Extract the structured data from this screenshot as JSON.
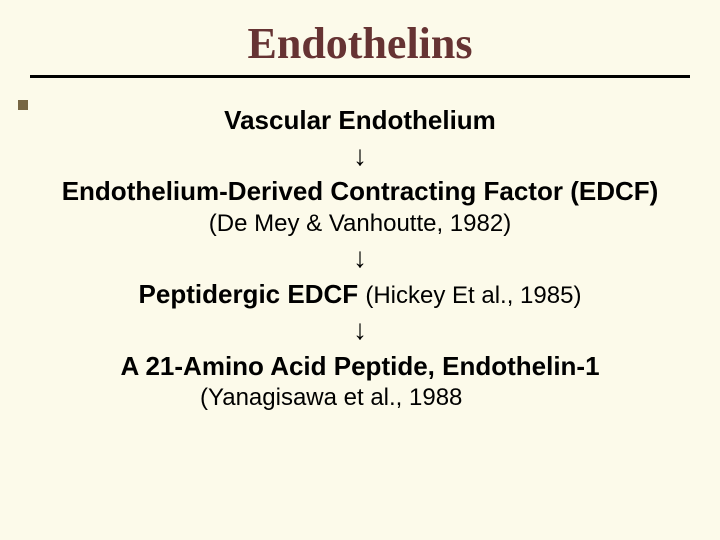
{
  "slide": {
    "background_color": "#fcfaea",
    "title": {
      "text": "Endothelins",
      "color": "#663333",
      "font_family": "Times New Roman",
      "font_size": 44,
      "font_weight": "bold"
    },
    "underline_color": "#000000",
    "bullet_marker_color": "#776644",
    "arrow_glyph": "↓",
    "steps": [
      {
        "main": "Vascular Endothelium"
      },
      {
        "main": "Endothelium-Derived Contracting Factor (EDCF)",
        "citation": "(De Mey & Vanhoutte, 1982)"
      },
      {
        "main": "Peptidergic EDCF",
        "citation_inline": "(Hickey Et al., 1985)"
      },
      {
        "main": "A 21-Amino Acid Peptide, Endothelin-1",
        "citation_below": "(Yanagisawa et al., 1988"
      }
    ],
    "text_color": "#000000",
    "main_font_size": 26,
    "citation_font_size": 24
  }
}
